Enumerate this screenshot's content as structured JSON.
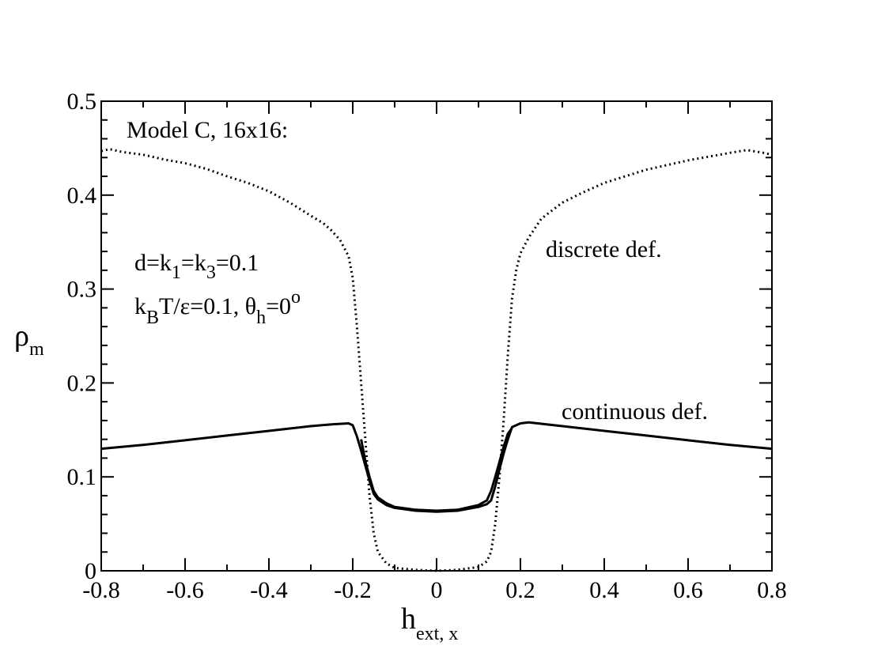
{
  "chart_data": {
    "type": "line",
    "xlabel": "h",
    "xlabel_sub": "ext, x",
    "ylabel": "ρ",
    "ylabel_sub": "m",
    "xlim": [
      -0.8,
      0.8
    ],
    "ylim": [
      0,
      0.5
    ],
    "x_ticks": [
      "-0.8",
      "-0.6",
      "-0.4",
      "-0.2",
      "0",
      "0.2",
      "0.4",
      "0.6",
      "0.8"
    ],
    "y_ticks": [
      "0",
      "0.1",
      "0.2",
      "0.3",
      "0.4",
      "0.5"
    ],
    "grid": false,
    "annotations": {
      "model": "Model C, 16x16:",
      "param1": {
        "p1": "d=k",
        "s1": "1",
        "p2": "=k",
        "s2": "3",
        "p3": "=0.1"
      },
      "param2": {
        "p1": "k",
        "s1": "B",
        "p2": "T/ε=0.1, θ",
        "s2": "h",
        "p3": "=0",
        "sup": "o"
      }
    },
    "series": [
      {
        "name": "discrete def.",
        "style": "dotted",
        "points": [
          [
            -0.8,
            0.447
          ],
          [
            -0.78,
            0.449
          ],
          [
            -0.75,
            0.446
          ],
          [
            -0.7,
            0.443
          ],
          [
            -0.65,
            0.438
          ],
          [
            -0.6,
            0.434
          ],
          [
            -0.55,
            0.428
          ],
          [
            -0.5,
            0.42
          ],
          [
            -0.45,
            0.413
          ],
          [
            -0.4,
            0.404
          ],
          [
            -0.35,
            0.392
          ],
          [
            -0.3,
            0.378
          ],
          [
            -0.27,
            0.37
          ],
          [
            -0.25,
            0.362
          ],
          [
            -0.23,
            0.352
          ],
          [
            -0.21,
            0.335
          ],
          [
            -0.2,
            0.312
          ],
          [
            -0.19,
            0.26
          ],
          [
            -0.18,
            0.2
          ],
          [
            -0.17,
            0.14
          ],
          [
            -0.16,
            0.08
          ],
          [
            -0.15,
            0.04
          ],
          [
            -0.14,
            0.02
          ],
          [
            -0.12,
            0.008
          ],
          [
            -0.1,
            0.003
          ],
          [
            -0.05,
            0.001
          ],
          [
            0,
            0.0
          ],
          [
            0.05,
            0.001
          ],
          [
            0.1,
            0.004
          ],
          [
            0.12,
            0.01
          ],
          [
            0.13,
            0.02
          ],
          [
            0.14,
            0.05
          ],
          [
            0.15,
            0.1
          ],
          [
            0.16,
            0.16
          ],
          [
            0.17,
            0.23
          ],
          [
            0.18,
            0.29
          ],
          [
            0.19,
            0.32
          ],
          [
            0.2,
            0.338
          ],
          [
            0.22,
            0.355
          ],
          [
            0.25,
            0.375
          ],
          [
            0.3,
            0.392
          ],
          [
            0.35,
            0.403
          ],
          [
            0.4,
            0.413
          ],
          [
            0.45,
            0.42
          ],
          [
            0.5,
            0.427
          ],
          [
            0.55,
            0.432
          ],
          [
            0.6,
            0.437
          ],
          [
            0.65,
            0.441
          ],
          [
            0.7,
            0.445
          ],
          [
            0.74,
            0.448
          ],
          [
            0.78,
            0.445
          ],
          [
            0.8,
            0.443
          ]
        ]
      },
      {
        "name": "continuous def.",
        "style": "solid",
        "points": [
          [
            -0.8,
            0.13
          ],
          [
            -0.7,
            0.134
          ],
          [
            -0.6,
            0.139
          ],
          [
            -0.5,
            0.144
          ],
          [
            -0.4,
            0.149
          ],
          [
            -0.3,
            0.154
          ],
          [
            -0.25,
            0.156
          ],
          [
            -0.21,
            0.157
          ],
          [
            -0.2,
            0.155
          ],
          [
            -0.19,
            0.143
          ],
          [
            -0.18,
            0.128
          ],
          [
            -0.17,
            0.112
          ],
          [
            -0.16,
            0.096
          ],
          [
            -0.15,
            0.082
          ],
          [
            -0.14,
            0.076
          ],
          [
            -0.12,
            0.07
          ],
          [
            -0.1,
            0.067
          ],
          [
            -0.05,
            0.064
          ],
          [
            0,
            0.063
          ],
          [
            0.05,
            0.064
          ],
          [
            0.1,
            0.068
          ],
          [
            0.12,
            0.071
          ],
          [
            0.13,
            0.075
          ],
          [
            0.14,
            0.09
          ],
          [
            0.15,
            0.108
          ],
          [
            0.16,
            0.125
          ],
          [
            0.17,
            0.14
          ],
          [
            0.18,
            0.153
          ],
          [
            0.2,
            0.157
          ],
          [
            0.22,
            0.158
          ],
          [
            0.3,
            0.154
          ],
          [
            0.4,
            0.149
          ],
          [
            0.5,
            0.144
          ],
          [
            0.6,
            0.139
          ],
          [
            0.7,
            0.134
          ],
          [
            0.8,
            0.13
          ]
        ]
      },
      {
        "name": "",
        "style": "solid",
        "points": [
          [
            -0.18,
            0.14
          ],
          [
            -0.17,
            0.117
          ],
          [
            -0.16,
            0.1
          ],
          [
            -0.15,
            0.085
          ],
          [
            -0.14,
            0.078
          ],
          [
            -0.12,
            0.072
          ],
          [
            -0.1,
            0.068
          ],
          [
            -0.05,
            0.065
          ],
          [
            0,
            0.064
          ],
          [
            0.05,
            0.065
          ],
          [
            0.1,
            0.07
          ],
          [
            0.12,
            0.075
          ],
          [
            0.13,
            0.085
          ],
          [
            0.14,
            0.1
          ],
          [
            0.15,
            0.116
          ],
          [
            0.16,
            0.132
          ],
          [
            0.17,
            0.146
          ],
          [
            0.18,
            0.152
          ]
        ]
      }
    ]
  }
}
